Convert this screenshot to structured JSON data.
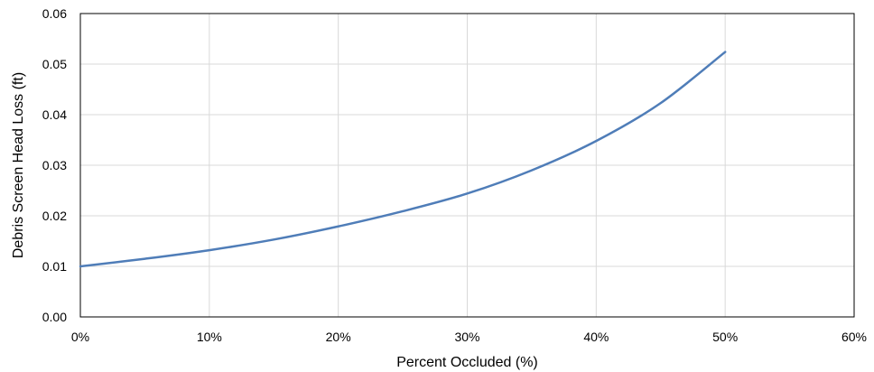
{
  "chart_data": {
    "type": "line",
    "xlabel": "Percent Occluded (%)",
    "ylabel": "Debris Screen Head Loss (ft)",
    "xlim": [
      0,
      60
    ],
    "ylim": [
      0,
      0.06
    ],
    "grid": true,
    "x_ticks": [
      "0%",
      "10%",
      "20%",
      "30%",
      "40%",
      "50%",
      "60%"
    ],
    "y_ticks": [
      "0.00",
      "0.01",
      "0.02",
      "0.03",
      "0.04",
      "0.05",
      "0.06"
    ],
    "series": [
      {
        "color": "#4f7db8",
        "x": [
          0,
          5,
          10,
          15,
          20,
          25,
          30,
          35,
          40,
          45,
          50
        ],
        "y": [
          0.01,
          0.0115,
          0.0132,
          0.0153,
          0.0179,
          0.0209,
          0.0244,
          0.029,
          0.0348,
          0.0423,
          0.0524
        ]
      }
    ]
  }
}
